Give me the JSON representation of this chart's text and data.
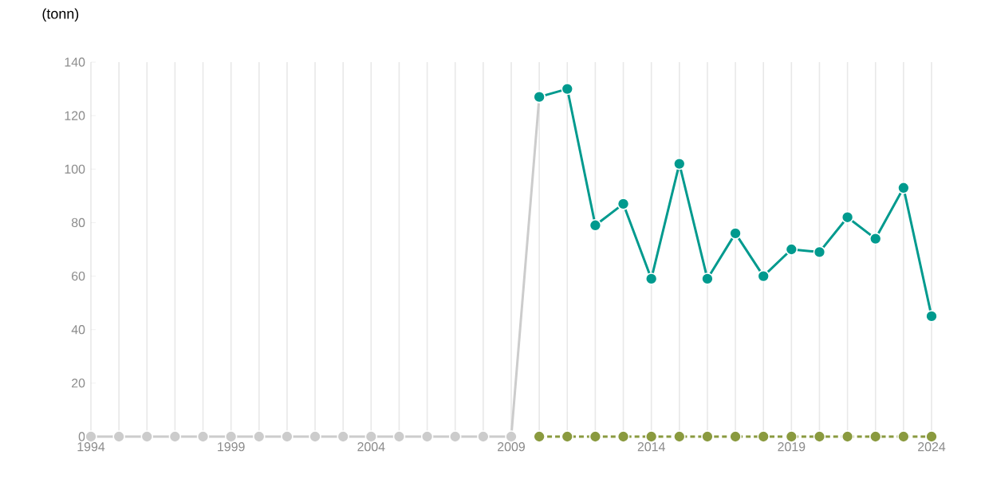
{
  "chart_data": {
    "type": "line",
    "ylabel": "(tonn)",
    "series": [
      {
        "color": "#cccccc",
        "line_style": "solid",
        "x": [
          1994,
          1995,
          1996,
          1997,
          1998,
          1999,
          2000,
          2001,
          2002,
          2003,
          2004,
          2005,
          2006,
          2007,
          2008,
          2009,
          2010
        ],
        "values": [
          0,
          0,
          0,
          0,
          0,
          0,
          0,
          0,
          0,
          0,
          0,
          0,
          0,
          0,
          0,
          0,
          127
        ]
      },
      {
        "color": "#8a9a3f",
        "line_style": "dashed",
        "x": [
          2010,
          2011,
          2012,
          2013,
          2014,
          2015,
          2016,
          2017,
          2018,
          2019,
          2020,
          2021,
          2022,
          2023,
          2024
        ],
        "values": [
          0,
          0,
          0,
          0,
          0,
          0,
          0,
          0,
          0,
          0,
          0,
          0,
          0,
          0,
          0
        ]
      },
      {
        "color": "#009a8e",
        "line_style": "solid",
        "x": [
          2010,
          2011,
          2012,
          2013,
          2014,
          2015,
          2016,
          2017,
          2018,
          2019,
          2020,
          2021,
          2022,
          2023,
          2024
        ],
        "values": [
          127,
          130,
          79,
          87,
          59,
          102,
          59,
          76,
          60,
          70,
          69,
          82,
          74,
          93,
          45
        ]
      }
    ],
    "xlim": [
      1994,
      2024
    ],
    "xticks": [
      1994,
      {
        "value": 1995,
        "label": null
      },
      {
        "value": 1996,
        "label": null
      },
      {
        "value": 1997,
        "label": null
      },
      {
        "value": 1998,
        "label": null
      },
      1999,
      {
        "value": 2000,
        "label": null
      },
      {
        "value": 2001,
        "label": null
      },
      {
        "value": 2002,
        "label": null
      },
      {
        "value": 2003,
        "label": null
      },
      2004,
      {
        "value": 2005,
        "label": null
      },
      {
        "value": 2006,
        "label": null
      },
      {
        "value": 2007,
        "label": null
      },
      {
        "value": 2008,
        "label": null
      },
      2009,
      {
        "value": 2010,
        "label": null
      },
      {
        "value": 2011,
        "label": null
      },
      {
        "value": 2012,
        "label": null
      },
      {
        "value": 2013,
        "label": null
      },
      2014,
      {
        "value": 2015,
        "label": null
      },
      {
        "value": 2016,
        "label": null
      },
      {
        "value": 2017,
        "label": null
      },
      {
        "value": 2018,
        "label": null
      },
      2019,
      {
        "value": 2020,
        "label": null
      },
      {
        "value": 2021,
        "label": null
      },
      {
        "value": 2022,
        "label": null
      },
      {
        "value": 2023,
        "label": null
      },
      2024
    ],
    "ylim": [
      0,
      140
    ],
    "yticks": [
      0,
      20,
      40,
      60,
      80,
      100,
      120,
      140
    ],
    "grid": "x",
    "marker": "circle"
  }
}
